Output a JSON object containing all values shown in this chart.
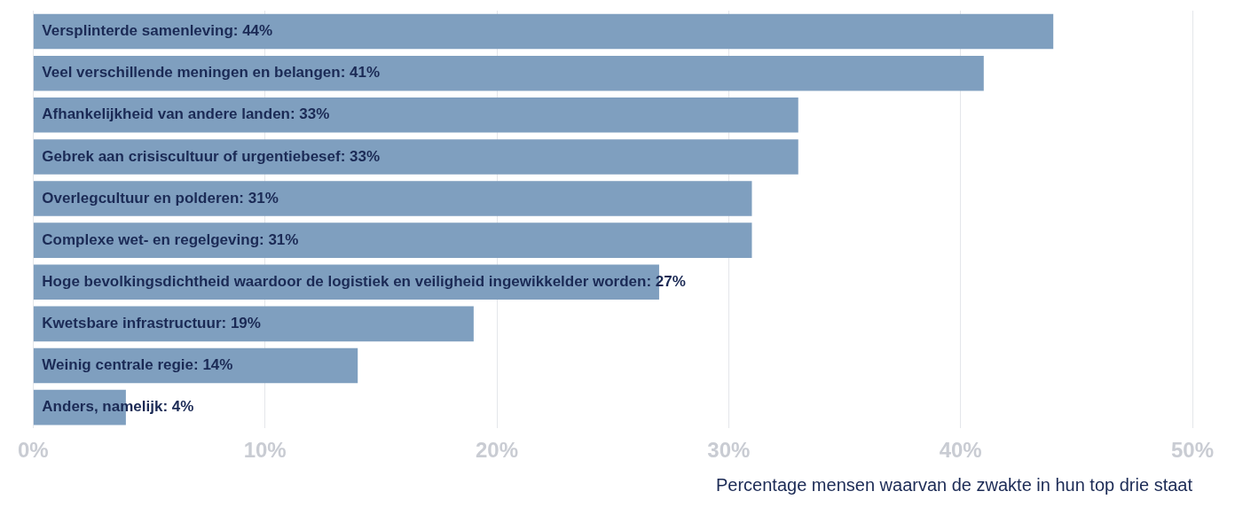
{
  "chart_data": {
    "type": "bar",
    "orientation": "horizontal",
    "xlabel": "Percentage mensen waarvan de zwakte in hun top drie staat",
    "categories": [
      "Versplinterde samenleving",
      "Veel verschillende meningen en belangen",
      "Afhankelijkheid van andere landen",
      "Gebrek aan crisiscultuur of urgentiebesef",
      "Overlegcultuur en polderen",
      "Complexe wet- en regelgeving",
      "Hoge bevolkingsdichtheid waardoor de logistiek en veiligheid ingewikkelder worden",
      "Kwetsbare infrastructuur",
      "Weinig centrale regie",
      "Anders, namelijk"
    ],
    "values": [
      44,
      41,
      33,
      33,
      31,
      31,
      27,
      19,
      14,
      4
    ],
    "value_labels": [
      ": 44%",
      ": 41%",
      ": 33%",
      ": 33%",
      ": 31%",
      ": 31%",
      ": 27%",
      ": 19%",
      ": 14%",
      ": 4%"
    ],
    "color": "#7f9fbf",
    "xlim": [
      0,
      50
    ],
    "xticks": [
      {
        "value": 0,
        "label": "0%"
      },
      {
        "value": 10,
        "label": "10%"
      },
      {
        "value": 20,
        "label": "20%"
      },
      {
        "value": 30,
        "label": "30%"
      },
      {
        "value": 40,
        "label": "40%"
      },
      {
        "value": 50,
        "label": "50%"
      }
    ],
    "grid": "x",
    "tick_labels": "x",
    "legend": false
  }
}
